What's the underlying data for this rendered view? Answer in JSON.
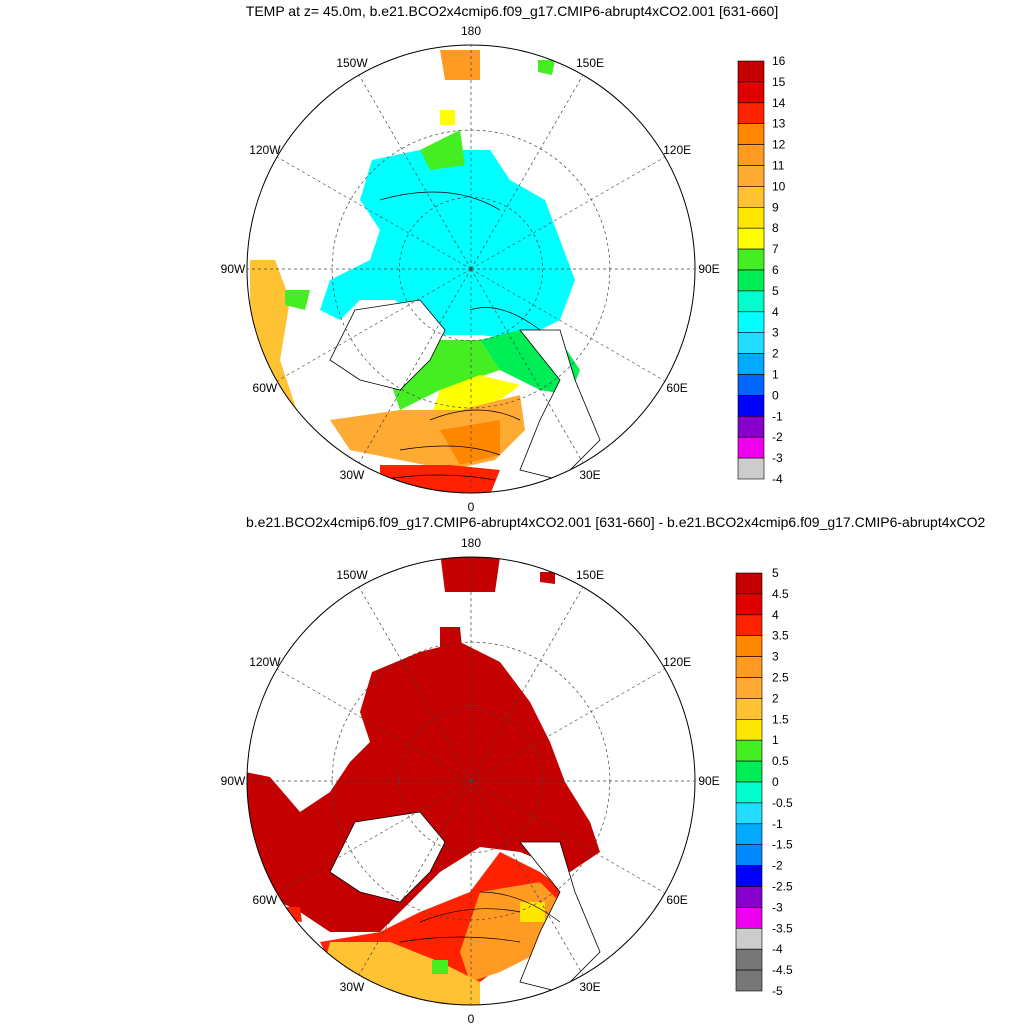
{
  "panels": [
    {
      "title": "TEMP at z=  45.0m, b.e21.BCO2x4cmip6.f09_g17.CMIP6-abrupt4xCO2.001 [631-660]",
      "lon_labels": {
        "180": "180",
        "150W": "150W",
        "150E": "150E",
        "120W": "120W",
        "120E": "120E",
        "90W": "90W",
        "90E": "90E",
        "60W": "60W",
        "60E": "60E",
        "30W": "30W",
        "30E": "30E",
        "0": "0"
      },
      "colorbar": {
        "labels": [
          "16",
          "15",
          "14",
          "13",
          "12",
          "11",
          "10",
          "9",
          "8",
          "7",
          "6",
          "5",
          "4",
          "3",
          "2",
          "1",
          "0",
          "-1",
          "-2",
          "-3",
          "-4"
        ],
        "colors": [
          "#c40000",
          "#e10000",
          "#ff2200",
          "#ff8800",
          "#ff9a22",
          "#ffaa33",
          "#ffc233",
          "#ffe600",
          "#ffff00",
          "#44ee22",
          "#00ee55",
          "#00ffcc",
          "#00ffff",
          "#22ddff",
          "#00aaff",
          "#0066ff",
          "#0000ff",
          "#8800cc",
          "#ee00ee",
          "#cccccc",
          "#777777"
        ]
      }
    },
    {
      "title": "b.e21.BCO2x4cmip6.f09_g17.CMIP6-abrupt4xCO2.001 [631-660] - b.e21.BCO2x4cmip6.f09_g17.CMIP6-abrupt4xCO2",
      "lon_labels": {
        "180": "180",
        "150W": "150W",
        "150E": "150E",
        "120W": "120W",
        "120E": "120E",
        "90W": "90W",
        "90E": "90E",
        "60W": "60W",
        "60E": "60E",
        "30W": "30W",
        "30E": "30E",
        "0": "0"
      },
      "colorbar": {
        "labels": [
          "5",
          "4.5",
          "4",
          "3.5",
          "3",
          "2.5",
          "2",
          "1.5",
          "1",
          "0.5",
          "0",
          "-0.5",
          "-1",
          "-1.5",
          "-2",
          "-2.5",
          "-3",
          "-3.5",
          "-4",
          "-4.5",
          "-5"
        ],
        "colors": [
          "#c40000",
          "#e10000",
          "#ff2200",
          "#ff8800",
          "#ff9a22",
          "#ffaa33",
          "#ffc233",
          "#ffe600",
          "#44ee22",
          "#00ee55",
          "#00ffcc",
          "#22ddff",
          "#00aaff",
          "#0088ff",
          "#0000ff",
          "#8800cc",
          "#ee00ee",
          "#cccccc",
          "#777777",
          "#777777"
        ]
      }
    }
  ]
}
